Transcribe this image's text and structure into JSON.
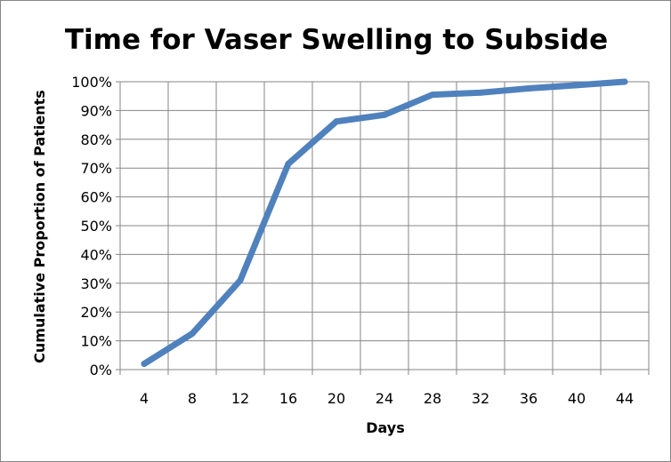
{
  "chart_data": {
    "type": "line",
    "title": "Time for Vaser Swelling to Subside",
    "xlabel": "Days",
    "ylabel": "Cumulative Proportion of Patients",
    "categories": [
      "4",
      "8",
      "12",
      "16",
      "20",
      "24",
      "28",
      "32",
      "36",
      "40",
      "44"
    ],
    "series": [
      {
        "values": [
          0.02,
          0.125,
          0.31,
          0.715,
          0.862,
          0.885,
          0.955,
          0.962,
          0.977,
          0.988,
          1.0
        ]
      }
    ],
    "ylim": [
      0,
      1
    ],
    "y_ticks": [
      {
        "value": 0,
        "label": "0%"
      },
      {
        "value": 0.1,
        "label": "10%"
      },
      {
        "value": 0.2,
        "label": "20%"
      },
      {
        "value": 0.3,
        "label": "30%"
      },
      {
        "value": 0.4,
        "label": "40%"
      },
      {
        "value": 0.5,
        "label": "50%"
      },
      {
        "value": 0.6,
        "label": "60%"
      },
      {
        "value": 0.7,
        "label": "70%"
      },
      {
        "value": 0.8,
        "label": "80%"
      },
      {
        "value": 0.9,
        "label": "90%"
      },
      {
        "value": 1.0,
        "label": "100%"
      }
    ],
    "grid": true,
    "legend": "none",
    "colors": {
      "line": "#4f81bd",
      "grid": "#868686",
      "frame": "#868686"
    }
  }
}
